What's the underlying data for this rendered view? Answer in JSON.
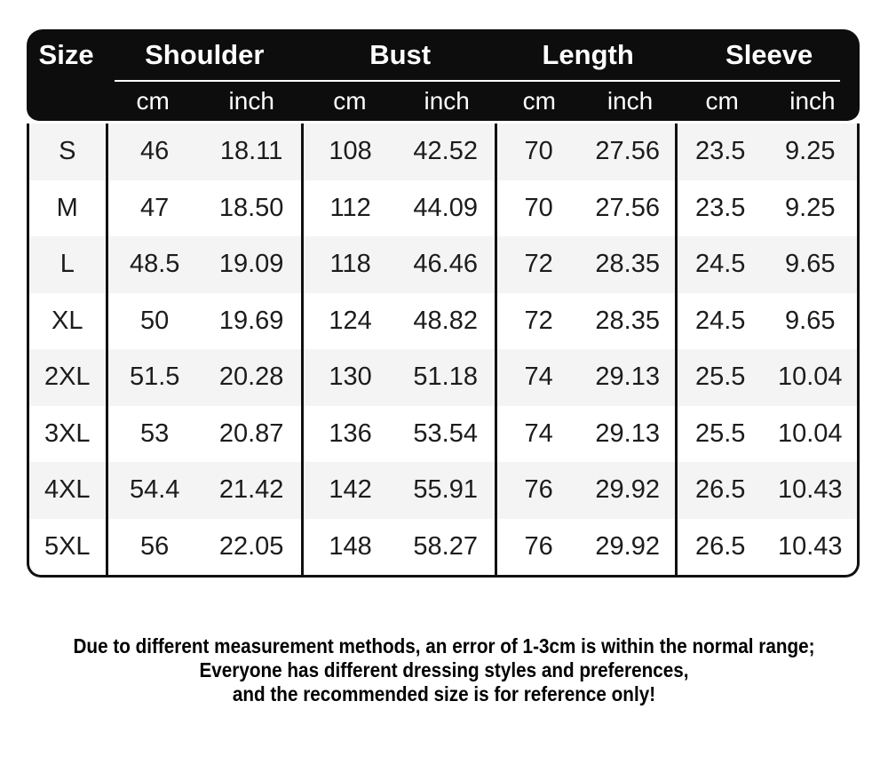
{
  "header": {
    "size_label": "Size",
    "groups": [
      {
        "label": "Shoulder",
        "units": [
          "cm",
          "inch"
        ]
      },
      {
        "label": "Bust",
        "units": [
          "cm",
          "inch"
        ]
      },
      {
        "label": "Length",
        "units": [
          "cm",
          "inch"
        ]
      },
      {
        "label": "Sleeve",
        "units": [
          "cm",
          "inch"
        ]
      }
    ]
  },
  "table": {
    "rows": [
      [
        "S",
        "46",
        "18.11",
        "108",
        "42.52",
        "70",
        "27.56",
        "23.5",
        "9.25"
      ],
      [
        "M",
        "47",
        "18.50",
        "112",
        "44.09",
        "70",
        "27.56",
        "23.5",
        "9.25"
      ],
      [
        "L",
        "48.5",
        "19.09",
        "118",
        "46.46",
        "72",
        "28.35",
        "24.5",
        "9.65"
      ],
      [
        "XL",
        "50",
        "19.69",
        "124",
        "48.82",
        "72",
        "28.35",
        "24.5",
        "9.65"
      ],
      [
        "2XL",
        "51.5",
        "20.28",
        "130",
        "51.18",
        "74",
        "29.13",
        "25.5",
        "10.04"
      ],
      [
        "3XL",
        "53",
        "20.87",
        "136",
        "53.54",
        "74",
        "29.13",
        "25.5",
        "10.04"
      ],
      [
        "4XL",
        "54.4",
        "21.42",
        "142",
        "55.91",
        "76",
        "29.92",
        "26.5",
        "10.43"
      ],
      [
        "5XL",
        "56",
        "22.05",
        "148",
        "58.27",
        "76",
        "29.92",
        "26.5",
        "10.43"
      ]
    ]
  },
  "disclaimer": {
    "lines": [
      "Due to different measurement methods, an error of 1-3cm is within the normal range;",
      "Everyone has different dressing styles and preferences,",
      "and the recommended size is for reference only!"
    ]
  },
  "colors": {
    "header_bg": "#0d0d0d",
    "stripe": "#f4f4f4",
    "border": "#111111",
    "text": "#1c1c1c"
  }
}
